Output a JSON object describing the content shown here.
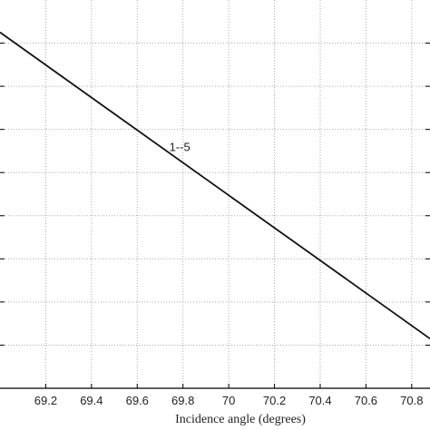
{
  "chart_data": {
    "type": "line",
    "xlabel": "Incidence angle (degrees)",
    "ylabel": "",
    "title": "",
    "xlim": [
      69.0,
      70.88
    ],
    "ylim": [
      0,
      9
    ],
    "grid": true,
    "x_ticks": [
      69.2,
      69.4,
      69.6,
      69.8,
      70,
      70.2,
      70.4,
      70.6,
      70.8
    ],
    "x_tick_labels": [
      "69.2",
      "69.4",
      "69.6",
      "69.8",
      "70",
      "70.2",
      "70.4",
      "70.6",
      "70.8"
    ],
    "y_ticks": [
      1,
      2,
      3,
      4,
      5,
      6,
      7,
      8
    ],
    "series": [
      {
        "x": [
          69.0,
          70.88
        ],
        "y": [
          8.25,
          1.15
        ]
      }
    ],
    "annotations": [
      {
        "text": "1--5",
        "x": 69.74,
        "y": 5.5
      }
    ],
    "colors": {
      "line": "#111111",
      "grid": "#aaaaaa",
      "axis": "#000000"
    }
  }
}
